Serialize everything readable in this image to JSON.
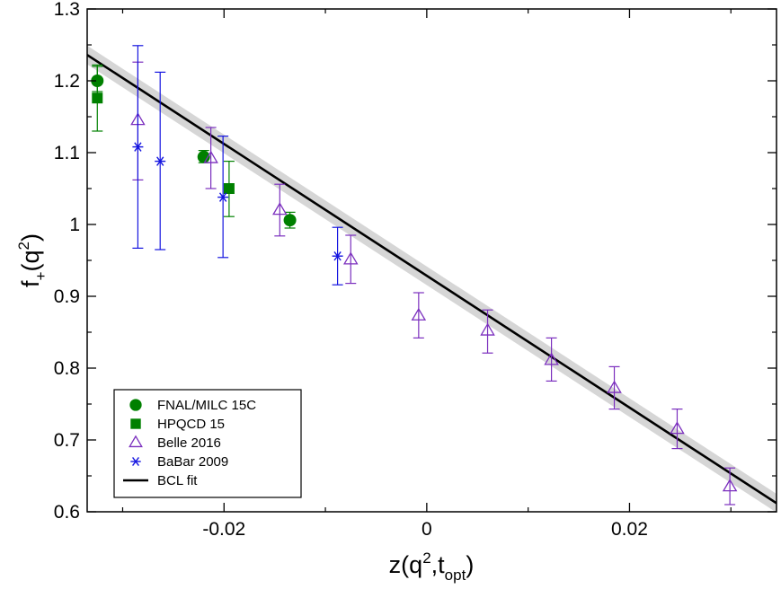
{
  "chart_data": {
    "type": "scatter",
    "xlabel": {
      "main": "z(q",
      "sup": "2",
      "mid": ",t",
      "sub": "opt",
      "end": ")"
    },
    "ylabel": {
      "main": "f",
      "sub": "+",
      "mid": "(q",
      "sup": "2",
      "end": ")"
    },
    "xlim": [
      -0.0335,
      0.0345
    ],
    "ylim": [
      0.6,
      1.3
    ],
    "x_ticks": [
      -0.02,
      0,
      0.02
    ],
    "x_tick_labels": [
      "-0.02",
      "0",
      "0.02"
    ],
    "x_minor_ticks": [
      -0.03,
      -0.01,
      0.01,
      0.03
    ],
    "y_ticks": [
      0.6,
      0.7,
      0.8,
      0.9,
      1.0,
      1.1,
      1.2,
      1.3
    ],
    "y_tick_labels": [
      "0.6",
      "0.7",
      "0.8",
      "0.9",
      "1",
      "1.1",
      "1.2",
      "1.3"
    ],
    "y_minor_ticks": [
      0.65,
      0.75,
      0.85,
      0.95,
      1.05,
      1.15,
      1.25
    ],
    "legend_position": "bottom-left",
    "series": [
      {
        "name": "FNAL/MILC 15C",
        "marker": "filled-circle",
        "color": "#008000",
        "points": [
          {
            "x": -0.0325,
            "y": 1.2,
            "ylo": 1.185,
            "yhi": 1.222
          },
          {
            "x": -0.022,
            "y": 1.094,
            "ylo": 1.086,
            "yhi": 1.103
          },
          {
            "x": -0.0135,
            "y": 1.006,
            "ylo": 0.995,
            "yhi": 1.017
          }
        ]
      },
      {
        "name": "HPQCD 15",
        "marker": "filled-square",
        "color": "#008000",
        "points": [
          {
            "x": -0.0325,
            "y": 1.176,
            "ylo": 1.13,
            "yhi": 1.22
          },
          {
            "x": -0.0195,
            "y": 1.05,
            "ylo": 1.011,
            "yhi": 1.088
          }
        ]
      },
      {
        "name": "Belle 2016",
        "marker": "open-triangle",
        "color": "#7B2FBE",
        "points": [
          {
            "x": -0.0285,
            "y": 1.145,
            "ylo": 1.062,
            "yhi": 1.226
          },
          {
            "x": -0.0213,
            "y": 1.092,
            "ylo": 1.05,
            "yhi": 1.135
          },
          {
            "x": -0.0145,
            "y": 1.02,
            "ylo": 0.984,
            "yhi": 1.056
          },
          {
            "x": -0.0075,
            "y": 0.951,
            "ylo": 0.918,
            "yhi": 0.985
          },
          {
            "x": -0.0008,
            "y": 0.873,
            "ylo": 0.842,
            "yhi": 0.905
          },
          {
            "x": 0.006,
            "y": 0.852,
            "ylo": 0.821,
            "yhi": 0.881
          },
          {
            "x": 0.0123,
            "y": 0.811,
            "ylo": 0.782,
            "yhi": 0.842
          },
          {
            "x": 0.0185,
            "y": 0.772,
            "ylo": 0.743,
            "yhi": 0.802
          },
          {
            "x": 0.0247,
            "y": 0.715,
            "ylo": 0.688,
            "yhi": 0.743
          },
          {
            "x": 0.0299,
            "y": 0.635,
            "ylo": 0.61,
            "yhi": 0.661
          }
        ]
      },
      {
        "name": "BaBar 2009",
        "marker": "asterisk",
        "color": "#1515E0",
        "points": [
          {
            "x": -0.0285,
            "y": 1.108,
            "ylo": 0.967,
            "yhi": 1.249
          },
          {
            "x": -0.0263,
            "y": 1.088,
            "ylo": 0.965,
            "yhi": 1.212
          },
          {
            "x": -0.0201,
            "y": 1.038,
            "ylo": 0.954,
            "yhi": 1.123
          },
          {
            "x": -0.0088,
            "y": 0.956,
            "ylo": 0.916,
            "yhi": 0.996
          }
        ]
      }
    ],
    "fit": {
      "name": "BCL fit",
      "color": "#000000",
      "band_color": "#d6d6d6",
      "x": [
        -0.0335,
        0.0345
      ],
      "y": [
        1.236,
        0.612
      ],
      "band_halfwidth": 0.013
    }
  }
}
